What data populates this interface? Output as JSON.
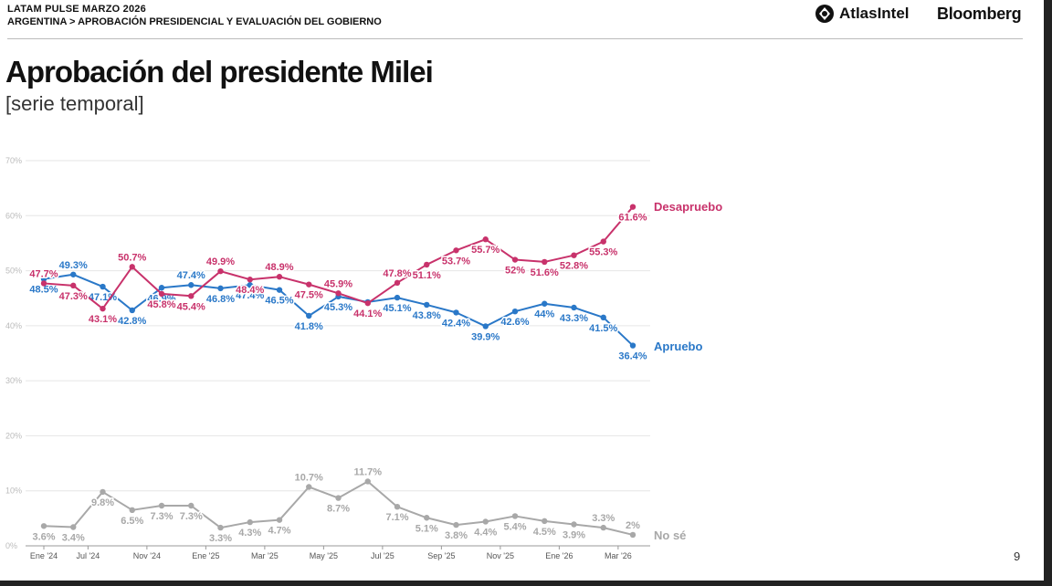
{
  "header": {
    "pulse": "LATAM PULSE MARZO 2026",
    "breadcrumb": "ARGENTINA > APROBACIÓN PRESIDENCIAL Y EVALUACIÓN DEL GOBIERNO",
    "logo_atlas": "AtlasIntel",
    "logo_bloomberg": "Bloomberg"
  },
  "page_number": "9",
  "colors": {
    "desapruebo": "#c8326b",
    "apruebo": "#2a78c8",
    "nose": "#a8a8a8",
    "grid": "#e6e6e6"
  },
  "chart_data": {
    "type": "line",
    "title": "Aprobación del presidente Milei",
    "subtitle": "[serie temporal]",
    "ylim": [
      0,
      70
    ],
    "yticks": [
      "0%",
      "10%",
      "20%",
      "30%",
      "40%",
      "50%",
      "60%",
      "70%"
    ],
    "x_tick_labels": [
      "Ene '24",
      "Jul '24",
      "Nov '24",
      "Ene '25",
      "Mar '25",
      "May '25",
      "Jul '25",
      "Sep '25",
      "Nov '25",
      "Ene '26",
      "Mar '26"
    ],
    "n_points": 21,
    "series": [
      {
        "name": "Desapruebo",
        "color": "#c8326b",
        "values": [
          47.7,
          47.3,
          43.1,
          50.7,
          45.8,
          45.4,
          49.9,
          48.4,
          48.9,
          47.5,
          45.9,
          44.1,
          47.8,
          51.1,
          53.7,
          55.7,
          52.0,
          51.6,
          52.8,
          55.3,
          61.6
        ],
        "labels": [
          "47.7%",
          "47.3%",
          "43.1%",
          "50.7%",
          "45.8%",
          "45.4%",
          "49.9%",
          "48.4%",
          "48.9%",
          "47.5%",
          "45.9%",
          "44.1%",
          "47.8%",
          "51.1%",
          "53.7%",
          "55.7%",
          "52%",
          "51.6%",
          "52.8%",
          "55.3%",
          "61.6%"
        ]
      },
      {
        "name": "Apruebo",
        "color": "#2a78c8",
        "values": [
          48.5,
          49.3,
          47.1,
          42.8,
          46.9,
          47.4,
          46.8,
          47.4,
          46.5,
          41.8,
          45.3,
          44.3,
          45.1,
          43.8,
          42.4,
          39.9,
          42.6,
          44.0,
          43.3,
          41.5,
          36.4
        ],
        "labels": [
          "48.5%",
          "49.3%",
          "47.1%",
          "42.8%",
          "46.9%",
          "47.4%",
          "46.8%",
          "47.4%",
          "46.5%",
          "41.8%",
          "45.3%",
          "44.3%",
          "45.1%",
          "43.8%",
          "42.4%",
          "39.9%",
          "42.6%",
          "44%",
          "43.3%",
          "41.5%",
          "36.4%"
        ]
      },
      {
        "name": "No sé",
        "color": "#a8a8a8",
        "values": [
          3.6,
          3.4,
          9.8,
          6.5,
          7.3,
          7.3,
          3.3,
          4.3,
          4.7,
          10.7,
          8.7,
          11.7,
          7.1,
          5.1,
          3.8,
          4.4,
          5.4,
          4.5,
          3.9,
          3.3,
          2.0
        ],
        "labels": [
          "3.6%",
          "3.4%",
          "9.8%",
          "6.5%",
          "7.3%",
          "7.3%",
          "3.3%",
          "4.3%",
          "4.7%",
          "10.7%",
          "8.7%",
          "11.7%",
          "7.1%",
          "5.1%",
          "3.8%",
          "4.4%",
          "5.4%",
          "4.5%",
          "3.9%",
          "3.3%",
          "2%"
        ]
      }
    ]
  }
}
